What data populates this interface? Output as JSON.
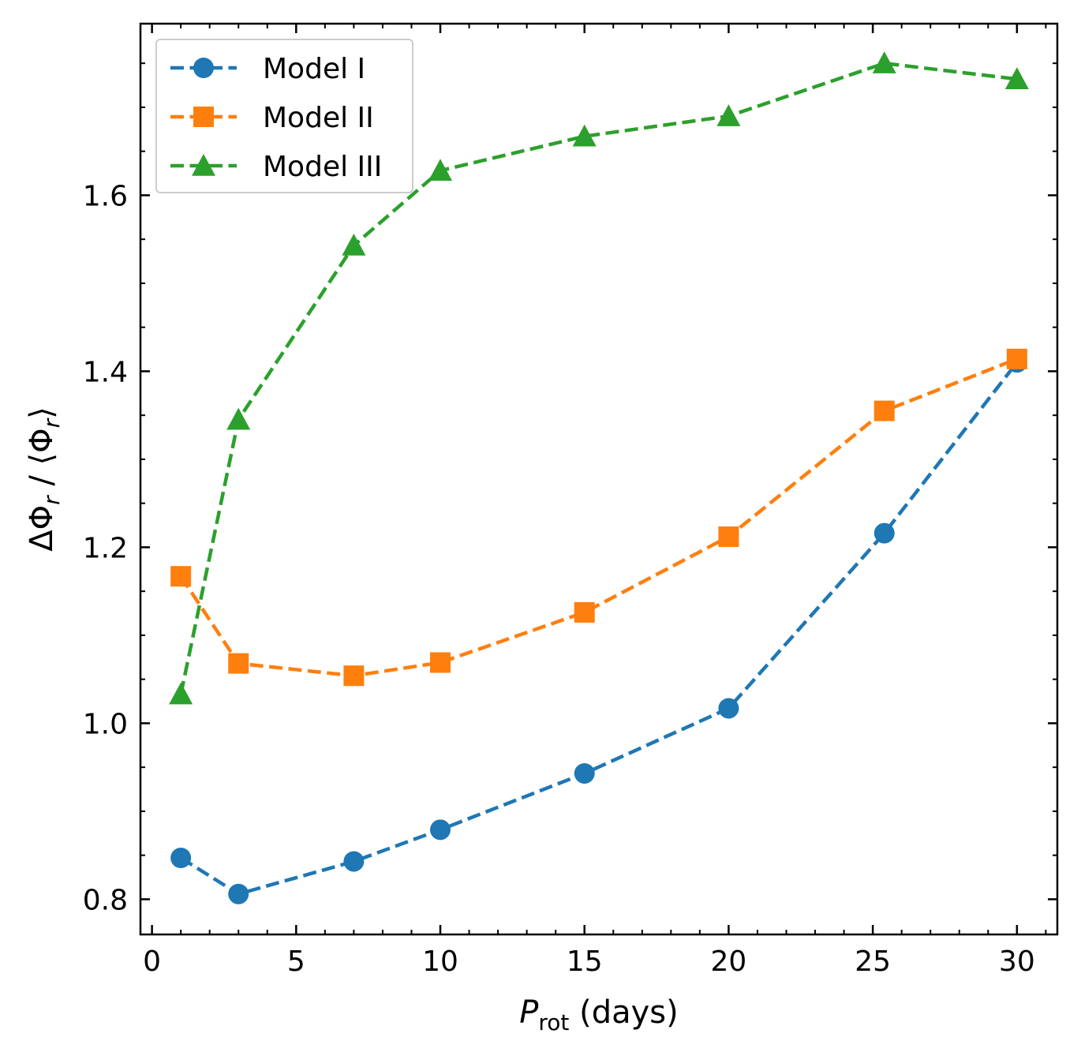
{
  "chart_data": {
    "type": "line",
    "title": "",
    "xlabel": "P_rot (days)",
    "xlabel_main": "P",
    "xlabel_sub": "rot",
    "xlabel_rest": " (days)",
    "ylabel": "ΔΦ_r / ⟨Φ_r⟩",
    "ylabel_parts": {
      "a": "ΔΦ",
      "sub1": "r",
      "b": " / ⟨Φ",
      "sub2": "r",
      "c": "⟩"
    },
    "xlim": [
      -0.4,
      31.4
    ],
    "ylim": [
      0.76,
      1.795
    ],
    "x_ticks": [
      0,
      5,
      10,
      15,
      20,
      25,
      30
    ],
    "x_tick_labels": [
      "0",
      "5",
      "10",
      "15",
      "20",
      "25",
      "30"
    ],
    "y_ticks": [
      0.8,
      1.0,
      1.2,
      1.4,
      1.6
    ],
    "y_tick_labels": [
      "0.8",
      "1.0",
      "1.2",
      "1.4",
      "1.6"
    ],
    "x_minor_step": 1,
    "y_minor_step": 0.05,
    "grid": false,
    "legend_position": "top-left",
    "x": [
      1,
      3,
      7,
      10,
      15,
      20,
      25.4,
      30
    ],
    "series": [
      {
        "name": "Model I",
        "color": "#1f77b4",
        "marker": "circle",
        "values": [
          0.847,
          0.806,
          0.843,
          0.879,
          0.943,
          1.017,
          1.216,
          1.41
        ]
      },
      {
        "name": "Model II",
        "color": "#ff7f0e",
        "marker": "square",
        "values": [
          1.167,
          1.068,
          1.054,
          1.069,
          1.126,
          1.212,
          1.355,
          1.414
        ]
      },
      {
        "name": "Model III",
        "color": "#2ca02c",
        "marker": "triangle",
        "values": [
          1.033,
          1.345,
          1.543,
          1.628,
          1.667,
          1.69,
          1.75,
          1.732
        ]
      }
    ]
  }
}
